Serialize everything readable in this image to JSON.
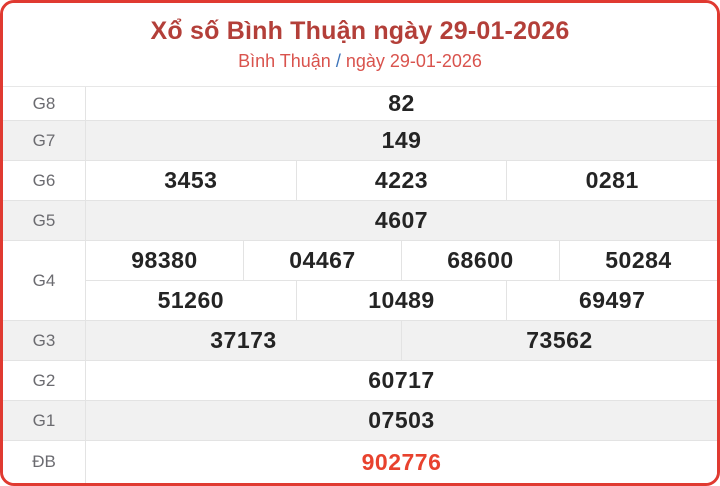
{
  "header": {
    "title": "Xổ số Bình Thuận ngày 29-01-2026",
    "subtitle_location": "Bình Thuận",
    "subtitle_separator": "/",
    "subtitle_date": "ngày 29-01-2026"
  },
  "colors": {
    "border_red": "#e03a31",
    "title_red": "#b33f39",
    "subtitle_red": "#d9534d",
    "slash_blue": "#3b73ba",
    "special_number_red": "#e8422e",
    "number_dark": "#242424",
    "label_gray": "#6b6b70",
    "row_alt_bg": "#f1f1f1"
  },
  "results_table": {
    "rows": [
      {
        "label": "G8",
        "alt": false,
        "special": false,
        "lines": [
          [
            "82"
          ]
        ]
      },
      {
        "label": "G7",
        "alt": true,
        "special": false,
        "lines": [
          [
            "149"
          ]
        ]
      },
      {
        "label": "G6",
        "alt": false,
        "special": false,
        "lines": [
          [
            "3453",
            "4223",
            "0281"
          ]
        ]
      },
      {
        "label": "G5",
        "alt": true,
        "special": false,
        "lines": [
          [
            "4607"
          ]
        ]
      },
      {
        "label": "G4",
        "alt": false,
        "special": false,
        "lines": [
          [
            "98380",
            "04467",
            "68600",
            "50284"
          ],
          [
            "51260",
            "10489",
            "69497"
          ]
        ]
      },
      {
        "label": "G3",
        "alt": true,
        "special": false,
        "lines": [
          [
            "37173",
            "73562"
          ]
        ]
      },
      {
        "label": "G2",
        "alt": false,
        "special": false,
        "lines": [
          [
            "60717"
          ]
        ]
      },
      {
        "label": "G1",
        "alt": true,
        "special": false,
        "lines": [
          [
            "07503"
          ]
        ]
      },
      {
        "label": "ĐB",
        "alt": false,
        "special": true,
        "lines": [
          [
            "902776"
          ]
        ]
      }
    ]
  }
}
